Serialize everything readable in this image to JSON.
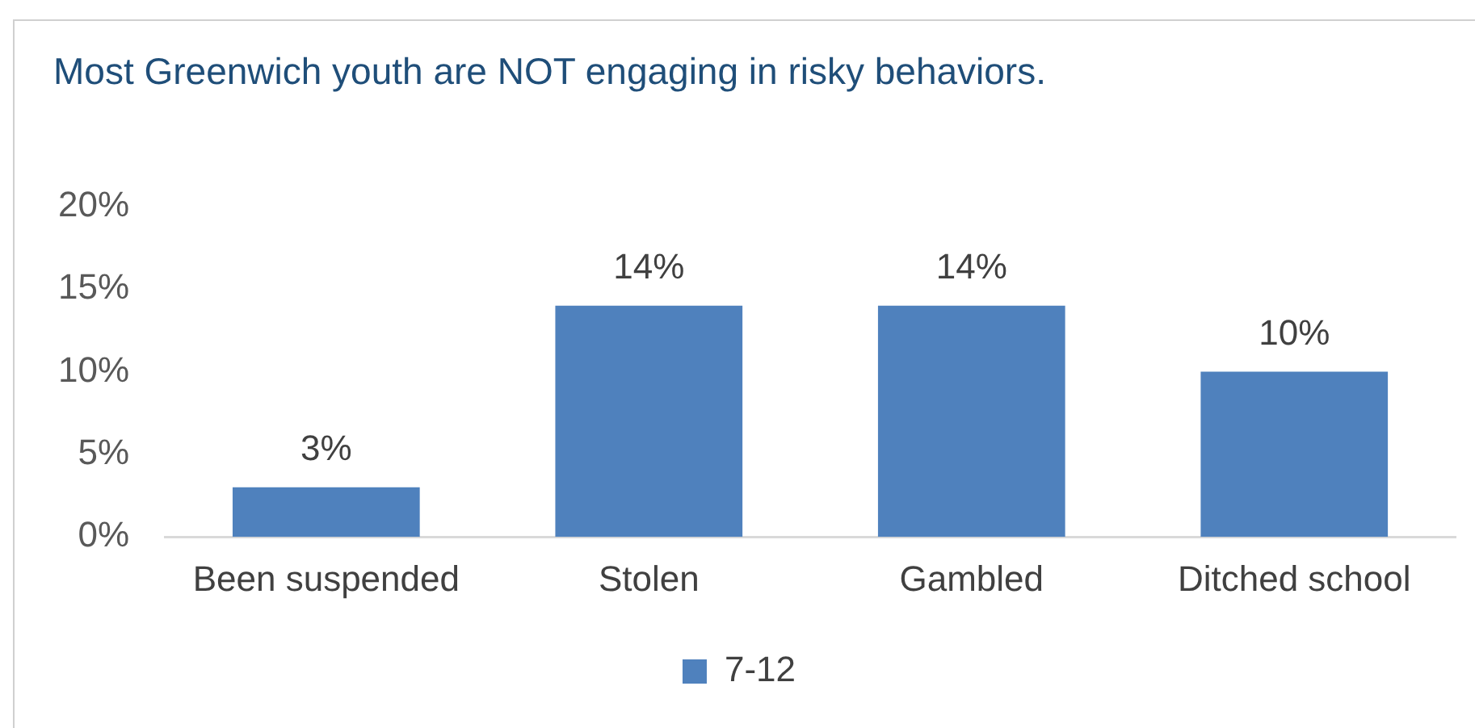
{
  "chart_data": {
    "type": "bar",
    "title": "Most Greenwich  youth are NOT engaging in risky behaviors.",
    "categories": [
      "Been suspended",
      "Stolen",
      "Gambled",
      "Ditched school"
    ],
    "series": [
      {
        "name": "7-12",
        "color": "#4f81bd",
        "values": [
          3,
          14,
          14,
          10
        ],
        "value_labels": [
          "3%",
          "14%",
          "14%",
          "10%"
        ]
      }
    ],
    "ylim": [
      0,
      20
    ],
    "yticks": [
      {
        "value": 0,
        "label": "0%"
      },
      {
        "value": 5,
        "label": "5%"
      },
      {
        "value": 10,
        "label": "10%"
      },
      {
        "value": 15,
        "label": "15%"
      },
      {
        "value": 20,
        "label": "20%"
      }
    ],
    "grid": false,
    "legend": "bottom"
  }
}
